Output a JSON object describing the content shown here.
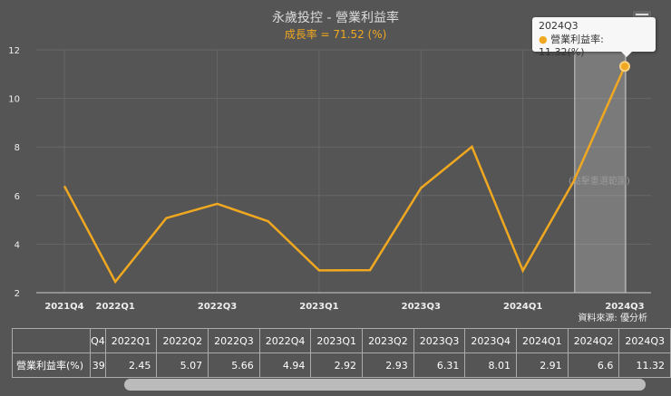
{
  "header": {
    "title": "永歲投控 - 營業利益率",
    "subtitle": "成長率 = 71.52 (%)",
    "menu_icon": "hamburger-icon"
  },
  "tooltip": {
    "period": "2024Q3",
    "series": "營業利益率",
    "value": "11.32(%)"
  },
  "range_hint": "(點擊重選範圍)",
  "source": "資料來源: 優分析",
  "colors": {
    "line": "#f0a820",
    "background": "#555555"
  },
  "chart_data": {
    "type": "line",
    "categories": [
      "2021Q4",
      "2022Q1",
      "2022Q2",
      "2022Q3",
      "2022Q4",
      "2023Q1",
      "2023Q2",
      "2023Q3",
      "2023Q4",
      "2024Q1",
      "2024Q2",
      "2024Q3"
    ],
    "series": [
      {
        "name": "營業利益率",
        "values": [
          6.39,
          2.45,
          5.07,
          5.66,
          4.94,
          2.92,
          2.93,
          6.31,
          8.01,
          2.91,
          6.6,
          11.32
        ]
      }
    ],
    "x_tick_labels": [
      "2021Q4",
      "2022Q1",
      "2022Q3",
      "2023Q1",
      "2023Q3",
      "2024Q1",
      "2024Q3"
    ],
    "y_ticks": [
      "2",
      "4",
      "6",
      "8",
      "10",
      "12"
    ],
    "ylim": [
      2,
      12
    ],
    "grid": true,
    "highlighted_range": [
      "2024Q2",
      "2024Q3"
    ]
  },
  "table": {
    "row_label": "營業利益率(%)",
    "partial_header": "Q4",
    "partial_value": "39",
    "headers": [
      "2022Q1",
      "2022Q2",
      "2022Q3",
      "2022Q4",
      "2023Q1",
      "2023Q2",
      "2023Q3",
      "2023Q4",
      "2024Q1",
      "2024Q2",
      "2024Q3"
    ],
    "values": [
      "2.45",
      "5.07",
      "5.66",
      "4.94",
      "2.92",
      "2.93",
      "6.31",
      "8.01",
      "2.91",
      "6.6",
      "11.32"
    ]
  }
}
